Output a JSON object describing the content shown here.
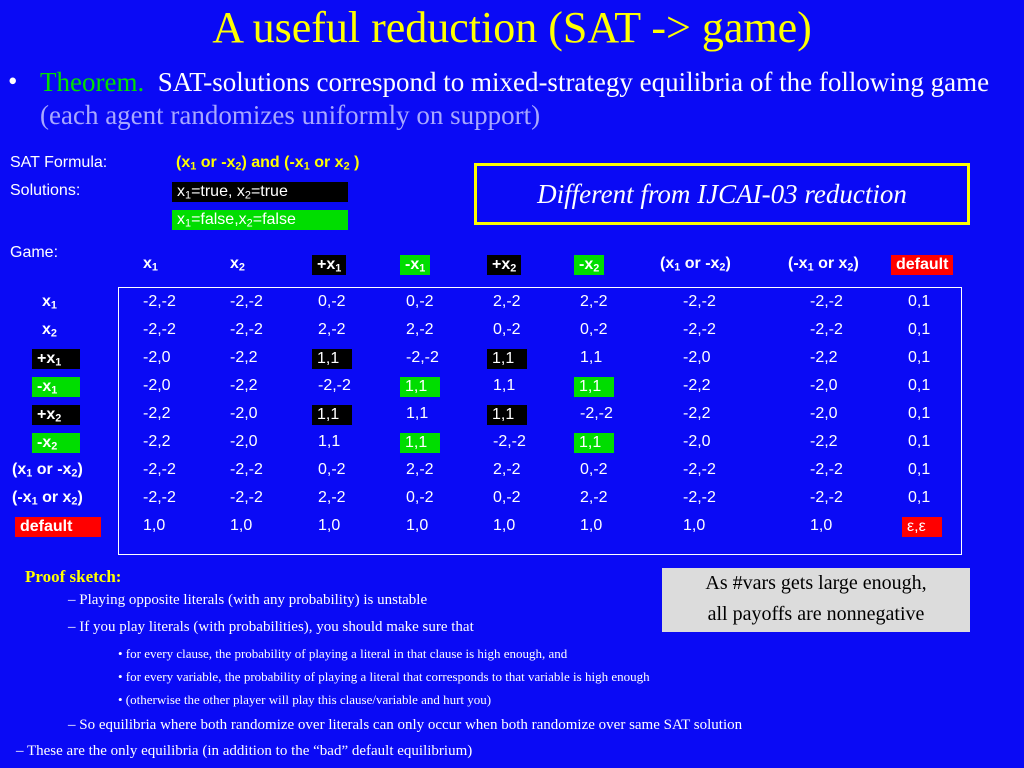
{
  "title": "A useful reduction (SAT -> game)",
  "bullet": {
    "marker": "•",
    "lead": "Theorem.",
    "text": "SAT-solutions correspond to mixed-strategy equilibria of the following game",
    "note": "(each agent randomizes uniformly on support)"
  },
  "formula": {
    "label": "SAT Formula:",
    "value": [
      "(x",
      "1",
      " or -x",
      "2",
      ") and (-x",
      "1",
      " or x",
      "2",
      " )"
    ]
  },
  "solutions": {
    "label": "Solutions:",
    "items": [
      {
        "text": [
          "x",
          "1",
          "=true, x",
          "2",
          "=true"
        ],
        "box": "#000000"
      },
      {
        "text": [
          "x",
          "1",
          "=false,x",
          "2",
          "=false"
        ],
        "box": "#00dd00"
      }
    ]
  },
  "callout": "Different from IJCAI-03 reduction",
  "game": {
    "label": "Game:",
    "columns": [
      {
        "text": [
          "x",
          "1"
        ]
      },
      {
        "text": [
          "x",
          "2"
        ]
      },
      {
        "text": [
          "+x",
          "1"
        ],
        "box": "#000000"
      },
      {
        "text": [
          "-x",
          "1"
        ],
        "box": "#00dd00"
      },
      {
        "text": [
          "+x",
          "2"
        ],
        "box": "#000000"
      },
      {
        "text": [
          "-x",
          "2"
        ],
        "box": "#00dd00"
      },
      {
        "text": [
          "(x",
          "1",
          " or -x",
          "2",
          ")"
        ]
      },
      {
        "text": [
          "(-x",
          "1",
          " or x",
          "2",
          ")"
        ]
      },
      {
        "text": [
          "default"
        ],
        "box": "#ff0000"
      }
    ],
    "rows": [
      {
        "label": [
          "x",
          "1"
        ],
        "cells": [
          "-2,-2",
          "-2,-2",
          "0,-2",
          "0,-2",
          "2,-2",
          "2,-2",
          "-2,-2",
          "-2,-2",
          "0,1"
        ]
      },
      {
        "label": [
          "x",
          "2"
        ],
        "cells": [
          "-2,-2",
          "-2,-2",
          "2,-2",
          "2,-2",
          "0,-2",
          "0,-2",
          "-2,-2",
          "-2,-2",
          "0,1"
        ]
      },
      {
        "label": [
          "+x",
          "1"
        ],
        "box": "#000000",
        "cells": [
          "-2,0",
          "-2,2",
          {
            "text": "1,1",
            "box": "#000000"
          },
          "-2,-2",
          {
            "text": "1,1",
            "box": "#000000"
          },
          "1,1",
          "-2,0",
          "-2,2",
          "0,1"
        ]
      },
      {
        "label": [
          "-x",
          "1"
        ],
        "box": "#00dd00",
        "cells": [
          "-2,0",
          "-2,2",
          "-2,-2",
          {
            "text": "1,1",
            "box": "#00dd00"
          },
          "1,1",
          {
            "text": "1,1",
            "box": "#00dd00"
          },
          "-2,2",
          "-2,0",
          "0,1"
        ]
      },
      {
        "label": [
          "+x",
          "2"
        ],
        "box": "#000000",
        "cells": [
          "-2,2",
          "-2,0",
          {
            "text": "1,1",
            "box": "#000000"
          },
          "1,1",
          {
            "text": "1,1",
            "box": "#000000"
          },
          "-2,-2",
          "-2,2",
          "-2,0",
          "0,1"
        ]
      },
      {
        "label": [
          "-x",
          "2"
        ],
        "box": "#00dd00",
        "cells": [
          "-2,2",
          "-2,0",
          "1,1",
          {
            "text": "1,1",
            "box": "#00dd00"
          },
          "-2,-2",
          {
            "text": "1,1",
            "box": "#00dd00"
          },
          "-2,0",
          "-2,2",
          "0,1"
        ]
      },
      {
        "label": [
          "(x",
          "1",
          " or -x",
          "2",
          ")"
        ],
        "cells": [
          "-2,-2",
          "-2,-2",
          "0,-2",
          "2,-2",
          "2,-2",
          "0,-2",
          "-2,-2",
          "-2,-2",
          "0,1"
        ]
      },
      {
        "label": [
          "(-x",
          "1",
          " or x",
          "2",
          ")"
        ],
        "cells": [
          "-2,-2",
          "-2,-2",
          "2,-2",
          "0,-2",
          "0,-2",
          "2,-2",
          "-2,-2",
          "-2,-2",
          "0,1"
        ]
      },
      {
        "label": [
          "default"
        ],
        "box": "#ff0000",
        "cells": [
          "1,0",
          "1,0",
          "1,0",
          "1,0",
          "1,0",
          "1,0",
          "1,0",
          "1,0",
          {
            "text": "ε,ε",
            "box": "#ff0000"
          }
        ]
      }
    ]
  },
  "note_box": [
    "As #vars gets large enough,",
    "all payoffs are nonnegative"
  ],
  "proof": {
    "heading": "Proof sketch:",
    "lines": [
      "– Playing opposite literals (with any probability) is unstable",
      "– If you play literals (with probabilities), you should make sure that",
      "• for every clause, the probability of playing a literal in that clause is high enough, and",
      "• for every variable, the probability of playing a literal that corresponds to that variable is high enough",
      "• (otherwise the other player will play this clause/variable and hurt you)",
      "– So equilibria where both randomize over literals can only occur when both randomize over same SAT solution",
      "– These are the only equilibria (in addition to the “bad” default equilibrium)"
    ]
  }
}
